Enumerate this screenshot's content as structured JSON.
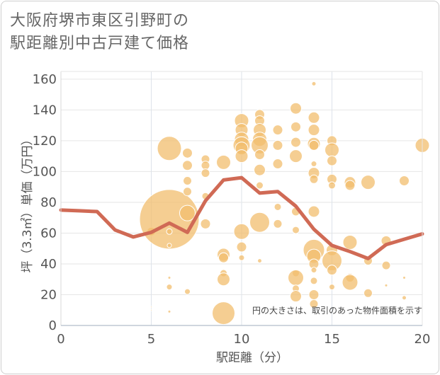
{
  "title_line1": "大阪府堺市東区引野町の",
  "title_line2": "駅距離別中古戸建て価格",
  "chart_data": {
    "type": "scatter",
    "xlabel": "駅距離（分）",
    "ylabel": "坪（3.3㎡）単価（万円）",
    "xlim": [
      0,
      20
    ],
    "ylim": [
      0,
      165
    ],
    "x_ticks": [
      "0",
      "5",
      "10",
      "15",
      "20"
    ],
    "y_ticks": [
      "0",
      "20",
      "40",
      "60",
      "80",
      "100",
      "120",
      "140",
      "160"
    ],
    "note": "円の大きさは、取引のあった物件面積を示す",
    "bubble_color": "#F2BE6E",
    "line_color": "#D06A55",
    "line": {
      "x": [
        0,
        1,
        2,
        3,
        4,
        5,
        6,
        7,
        8,
        9,
        10,
        11,
        12,
        13,
        14,
        15,
        16,
        17,
        18,
        19,
        20
      ],
      "y": [
        75,
        74.5,
        74,
        62,
        57.5,
        60.5,
        66.5,
        60.5,
        81,
        94.5,
        96,
        86,
        87,
        77.5,
        62.5,
        52,
        48,
        43.5,
        52.5,
        56,
        59.5
      ]
    },
    "points": [
      {
        "x": 5,
        "y": 12,
        "s": 1
      },
      {
        "x": 5,
        "y": 10,
        "s": 1
      },
      {
        "x": 5,
        "y": 61,
        "s": 6
      },
      {
        "x": 6,
        "y": 115,
        "s": 17
      },
      {
        "x": 6,
        "y": 69,
        "s": 42
      },
      {
        "x": 6,
        "y": 61,
        "s": 4
      },
      {
        "x": 6,
        "y": 52,
        "s": 3
      },
      {
        "x": 6,
        "y": 31,
        "s": 2
      },
      {
        "x": 6,
        "y": 25,
        "s": 4
      },
      {
        "x": 6,
        "y": 9,
        "s": 2
      },
      {
        "x": 7,
        "y": 112,
        "s": 7
      },
      {
        "x": 7,
        "y": 104,
        "s": 7
      },
      {
        "x": 7,
        "y": 94,
        "s": 6
      },
      {
        "x": 7,
        "y": 87,
        "s": 6
      },
      {
        "x": 7,
        "y": 73,
        "s": 11
      },
      {
        "x": 7,
        "y": 22,
        "s": 4
      },
      {
        "x": 8,
        "y": 108,
        "s": 6
      },
      {
        "x": 8,
        "y": 104,
        "s": 6
      },
      {
        "x": 8,
        "y": 99,
        "s": 6
      },
      {
        "x": 8,
        "y": 84,
        "s": 5
      },
      {
        "x": 8,
        "y": 66,
        "s": 7
      },
      {
        "x": 9,
        "y": 106,
        "s": 10
      },
      {
        "x": 9,
        "y": 46,
        "s": 9
      },
      {
        "x": 9,
        "y": 44,
        "s": 7
      },
      {
        "x": 9,
        "y": 34,
        "s": 5
      },
      {
        "x": 9,
        "y": 30,
        "s": 9
      },
      {
        "x": 9,
        "y": 8,
        "s": 16
      },
      {
        "x": 10,
        "y": 133,
        "s": 10
      },
      {
        "x": 10,
        "y": 127,
        "s": 9
      },
      {
        "x": 10,
        "y": 121,
        "s": 10
      },
      {
        "x": 10,
        "y": 117,
        "s": 12
      },
      {
        "x": 10,
        "y": 115,
        "s": 9
      },
      {
        "x": 10,
        "y": 110,
        "s": 9
      },
      {
        "x": 10,
        "y": 61,
        "s": 11
      },
      {
        "x": 10,
        "y": 51,
        "s": 7
      },
      {
        "x": 10,
        "y": 44,
        "s": 4
      },
      {
        "x": 11,
        "y": 137,
        "s": 7
      },
      {
        "x": 11,
        "y": 133,
        "s": 7
      },
      {
        "x": 11,
        "y": 127,
        "s": 9
      },
      {
        "x": 11,
        "y": 121,
        "s": 10
      },
      {
        "x": 11,
        "y": 117,
        "s": 12
      },
      {
        "x": 11,
        "y": 111,
        "s": 7
      },
      {
        "x": 11,
        "y": 101,
        "s": 8
      },
      {
        "x": 11,
        "y": 91,
        "s": 5
      },
      {
        "x": 11,
        "y": 67,
        "s": 14
      },
      {
        "x": 11,
        "y": 42,
        "s": 3
      },
      {
        "x": 12,
        "y": 127,
        "s": 7
      },
      {
        "x": 12,
        "y": 117,
        "s": 7
      },
      {
        "x": 12,
        "y": 105,
        "s": 7
      },
      {
        "x": 12,
        "y": 77,
        "s": 5
      },
      {
        "x": 12,
        "y": 66,
        "s": 6
      },
      {
        "x": 13,
        "y": 141,
        "s": 8
      },
      {
        "x": 13,
        "y": 129,
        "s": 7
      },
      {
        "x": 13,
        "y": 119,
        "s": 7
      },
      {
        "x": 13,
        "y": 110,
        "s": 9
      },
      {
        "x": 13,
        "y": 74,
        "s": 6
      },
      {
        "x": 13,
        "y": 62,
        "s": 5
      },
      {
        "x": 13,
        "y": 34,
        "s": 5
      },
      {
        "x": 13,
        "y": 31,
        "s": 11
      },
      {
        "x": 13,
        "y": 24,
        "s": 5
      },
      {
        "x": 13,
        "y": 19,
        "s": 8
      },
      {
        "x": 14,
        "y": 157,
        "s": 3
      },
      {
        "x": 14,
        "y": 135,
        "s": 8
      },
      {
        "x": 14,
        "y": 127,
        "s": 8
      },
      {
        "x": 14,
        "y": 118,
        "s": 9
      },
      {
        "x": 14,
        "y": 117,
        "s": 7
      },
      {
        "x": 14,
        "y": 105,
        "s": 4
      },
      {
        "x": 14,
        "y": 99,
        "s": 8
      },
      {
        "x": 14,
        "y": 95,
        "s": 6
      },
      {
        "x": 14,
        "y": 74,
        "s": 8
      },
      {
        "x": 14,
        "y": 49,
        "s": 15
      },
      {
        "x": 14,
        "y": 45,
        "s": 10
      },
      {
        "x": 14,
        "y": 40,
        "s": 7
      },
      {
        "x": 14,
        "y": 36,
        "s": 4
      },
      {
        "x": 14,
        "y": 29,
        "s": 5
      },
      {
        "x": 14,
        "y": 20,
        "s": 7
      },
      {
        "x": 14,
        "y": 14,
        "s": 6
      },
      {
        "x": 15,
        "y": 120,
        "s": 7
      },
      {
        "x": 15,
        "y": 114,
        "s": 10
      },
      {
        "x": 15,
        "y": 107,
        "s": 7
      },
      {
        "x": 15,
        "y": 95,
        "s": 7
      },
      {
        "x": 15,
        "y": 91,
        "s": 5
      },
      {
        "x": 15,
        "y": 49,
        "s": 8
      },
      {
        "x": 15,
        "y": 42,
        "s": 14
      },
      {
        "x": 15,
        "y": 36,
        "s": 7
      },
      {
        "x": 15,
        "y": 25,
        "s": 4
      },
      {
        "x": 16,
        "y": 93,
        "s": 8
      },
      {
        "x": 16,
        "y": 91,
        "s": 7
      },
      {
        "x": 16,
        "y": 54,
        "s": 10
      },
      {
        "x": 16,
        "y": 31,
        "s": 6
      },
      {
        "x": 16,
        "y": 28,
        "s": 11
      },
      {
        "x": 17,
        "y": 93,
        "s": 10
      },
      {
        "x": 17,
        "y": 42,
        "s": 6
      },
      {
        "x": 17,
        "y": 21,
        "s": 6
      },
      {
        "x": 18,
        "y": 55,
        "s": 7
      },
      {
        "x": 18,
        "y": 39,
        "s": 6
      },
      {
        "x": 18,
        "y": 26,
        "s": 2
      },
      {
        "x": 19,
        "y": 94,
        "s": 7
      },
      {
        "x": 19,
        "y": 31,
        "s": 2
      },
      {
        "x": 19,
        "y": 18,
        "s": 3
      },
      {
        "x": 20,
        "y": 117,
        "s": 10
      }
    ]
  }
}
